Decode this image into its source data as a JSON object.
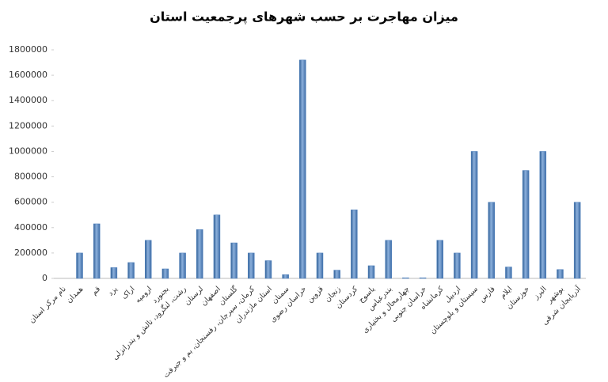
{
  "chart_data": {
    "type": "bar",
    "title": "میزان مهاجرت بر حسب شهرهای پرجمعیت استان",
    "categories": [
      "نام مرکز استان",
      "همدان",
      "قم",
      "یزد",
      "اراک",
      "ارومیه",
      "بجنورد",
      "رشت، لنگرود، تالش و بندرانزلی",
      "لرستان",
      "اصفهان",
      "گلستان",
      "کرمان، سیرجان، رفسنجان، بم و جیرفت",
      "استان مازندران",
      "سمنان",
      "خراسان رضوی",
      "قزوین",
      "زنجان",
      "کردستان",
      "یاسوج",
      "بندرعباس",
      "چهارمحال و بختیاری",
      "خراسان جنوبی",
      "کرمانشاه",
      "اردبیل",
      "سیستان و بلوچستان",
      "فارس",
      "ایلام",
      "خوزستان",
      "البرز",
      "بوشهر",
      "آذربایجان شرقی"
    ],
    "values": [
      0,
      200000,
      430000,
      85000,
      125000,
      300000,
      75000,
      200000,
      385000,
      500000,
      280000,
      200000,
      140000,
      30000,
      1720000,
      200000,
      65000,
      540000,
      100000,
      300000,
      5000,
      5000,
      300000,
      200000,
      1000000,
      600000,
      90000,
      850000,
      1000000,
      70000,
      600000
    ],
    "color": "#4f81bd",
    "ylim": [
      0,
      1800000
    ],
    "yticks": [
      0,
      200000,
      400000,
      600000,
      800000,
      1000000,
      1200000,
      1400000,
      1600000,
      1800000
    ],
    "grid": false
  }
}
